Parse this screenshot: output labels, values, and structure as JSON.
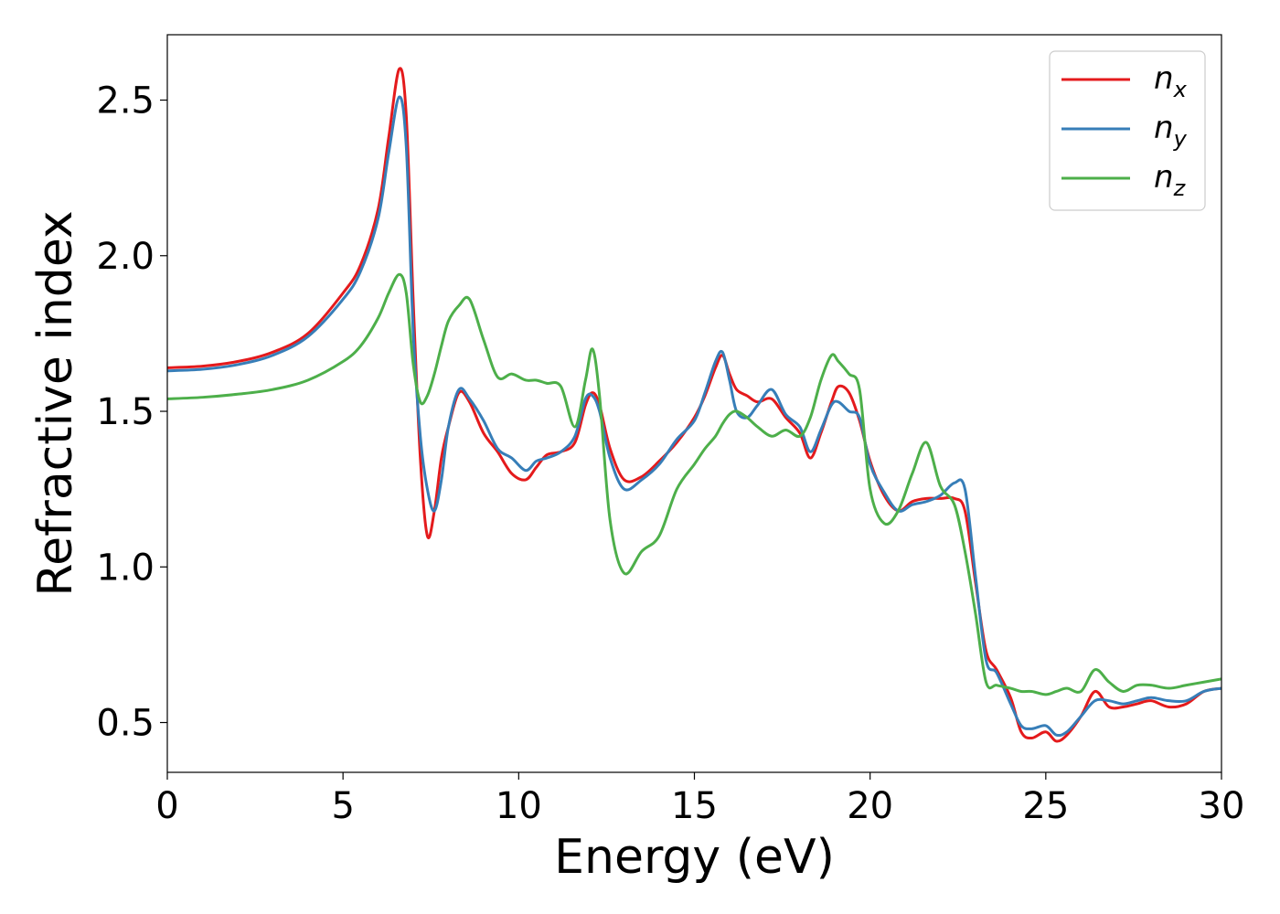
{
  "chart_data": {
    "type": "line",
    "title": "",
    "xlabel": "Energy (eV)",
    "ylabel": "Refractive index",
    "xlim": [
      0,
      30
    ],
    "ylim": [
      0.34,
      2.71
    ],
    "xticks": [
      0,
      5,
      10,
      15,
      20,
      25,
      30
    ],
    "xtick_labels": [
      "0",
      "5",
      "10",
      "15",
      "20",
      "25",
      "30"
    ],
    "yticks": [
      0.5,
      1.0,
      1.5,
      2.0,
      2.5
    ],
    "ytick_labels": [
      "0.5",
      "1.0",
      "1.5",
      "2.0",
      "2.5"
    ],
    "grid": false,
    "legend_position": "top-right",
    "series": [
      {
        "name": "n_x",
        "label_base": "n",
        "label_sub": "x",
        "color": "#e41a1c",
        "x": [
          0,
          1,
          2,
          3,
          4,
          5,
          5.5,
          6.0,
          6.3,
          6.6,
          6.8,
          7.0,
          7.2,
          7.4,
          7.6,
          7.8,
          8.0,
          8.3,
          8.6,
          9.0,
          9.4,
          9.8,
          10.2,
          10.5,
          10.8,
          11.2,
          11.6,
          11.9,
          12.1,
          12.3,
          12.6,
          13.0,
          13.5,
          14.0,
          14.5,
          15.0,
          15.3,
          15.6,
          15.8,
          16.0,
          16.2,
          16.5,
          16.8,
          17.2,
          17.6,
          18.0,
          18.3,
          18.6,
          18.9,
          19.1,
          19.4,
          19.7,
          20.0,
          20.4,
          20.8,
          21.2,
          21.6,
          22.0,
          22.4,
          22.7,
          23.0,
          23.3,
          23.6,
          24.0,
          24.3,
          24.6,
          25.0,
          25.3,
          25.6,
          26.0,
          26.4,
          26.8,
          27.2,
          27.6,
          28.0,
          28.5,
          29.0,
          29.5,
          30.0
        ],
        "values": [
          1.64,
          1.645,
          1.66,
          1.69,
          1.75,
          1.88,
          1.97,
          2.15,
          2.38,
          2.6,
          2.45,
          1.85,
          1.35,
          1.1,
          1.18,
          1.35,
          1.45,
          1.56,
          1.53,
          1.43,
          1.37,
          1.3,
          1.28,
          1.32,
          1.36,
          1.37,
          1.4,
          1.52,
          1.56,
          1.52,
          1.38,
          1.28,
          1.29,
          1.34,
          1.4,
          1.48,
          1.55,
          1.64,
          1.68,
          1.62,
          1.57,
          1.55,
          1.53,
          1.54,
          1.48,
          1.43,
          1.35,
          1.43,
          1.53,
          1.58,
          1.56,
          1.47,
          1.34,
          1.23,
          1.18,
          1.21,
          1.22,
          1.22,
          1.22,
          1.18,
          0.95,
          0.73,
          0.67,
          0.58,
          0.47,
          0.45,
          0.47,
          0.44,
          0.46,
          0.52,
          0.6,
          0.55,
          0.55,
          0.56,
          0.57,
          0.55,
          0.56,
          0.6,
          0.61
        ]
      },
      {
        "name": "n_y",
        "label_base": "n",
        "label_sub": "y",
        "color": "#377eb8",
        "x": [
          0,
          1,
          2,
          3,
          4,
          5,
          5.5,
          6.0,
          6.3,
          6.6,
          6.8,
          7.0,
          7.2,
          7.4,
          7.6,
          7.8,
          8.0,
          8.3,
          8.6,
          9.0,
          9.4,
          9.8,
          10.2,
          10.5,
          10.8,
          11.2,
          11.6,
          11.9,
          12.1,
          12.3,
          12.6,
          13.0,
          13.5,
          14.0,
          14.5,
          15.0,
          15.3,
          15.6,
          15.8,
          16.0,
          16.2,
          16.5,
          16.8,
          17.2,
          17.6,
          18.0,
          18.3,
          18.6,
          18.9,
          19.1,
          19.4,
          19.7,
          20.0,
          20.4,
          20.8,
          21.2,
          21.6,
          22.0,
          22.4,
          22.7,
          23.0,
          23.3,
          23.6,
          24.0,
          24.3,
          24.6,
          25.0,
          25.3,
          25.6,
          26.0,
          26.4,
          26.8,
          27.2,
          27.6,
          28.0,
          28.5,
          29.0,
          29.5,
          30.0
        ],
        "values": [
          1.63,
          1.635,
          1.65,
          1.68,
          1.74,
          1.86,
          1.95,
          2.12,
          2.33,
          2.51,
          2.35,
          1.75,
          1.42,
          1.25,
          1.18,
          1.28,
          1.45,
          1.57,
          1.54,
          1.47,
          1.38,
          1.35,
          1.31,
          1.34,
          1.35,
          1.37,
          1.42,
          1.54,
          1.55,
          1.5,
          1.35,
          1.25,
          1.28,
          1.33,
          1.41,
          1.47,
          1.56,
          1.66,
          1.69,
          1.6,
          1.5,
          1.48,
          1.52,
          1.57,
          1.49,
          1.45,
          1.37,
          1.44,
          1.52,
          1.53,
          1.5,
          1.48,
          1.33,
          1.24,
          1.18,
          1.2,
          1.21,
          1.23,
          1.27,
          1.25,
          0.97,
          0.7,
          0.66,
          0.56,
          0.49,
          0.48,
          0.49,
          0.46,
          0.47,
          0.52,
          0.57,
          0.57,
          0.56,
          0.57,
          0.58,
          0.57,
          0.57,
          0.6,
          0.61
        ]
      },
      {
        "name": "n_z",
        "label_base": "n",
        "label_sub": "z",
        "color": "#4daf4a",
        "x": [
          0,
          1,
          2,
          3,
          4,
          5,
          5.5,
          6.0,
          6.3,
          6.6,
          6.8,
          7.0,
          7.2,
          7.4,
          7.6,
          7.8,
          8.0,
          8.3,
          8.6,
          9.0,
          9.4,
          9.8,
          10.2,
          10.5,
          10.8,
          11.2,
          11.6,
          11.9,
          12.1,
          12.3,
          12.6,
          13.0,
          13.5,
          14.0,
          14.5,
          15.0,
          15.3,
          15.6,
          15.8,
          16.0,
          16.2,
          16.5,
          16.8,
          17.2,
          17.6,
          18.0,
          18.3,
          18.6,
          18.9,
          19.1,
          19.4,
          19.7,
          20.0,
          20.4,
          20.8,
          21.2,
          21.6,
          22.0,
          22.4,
          22.7,
          23.0,
          23.3,
          23.6,
          24.0,
          24.3,
          24.6,
          25.0,
          25.3,
          25.6,
          26.0,
          26.4,
          26.8,
          27.2,
          27.6,
          28.0,
          28.5,
          29.0,
          29.5,
          30.0
        ],
        "values": [
          1.54,
          1.545,
          1.555,
          1.57,
          1.6,
          1.66,
          1.71,
          1.8,
          1.88,
          1.94,
          1.88,
          1.65,
          1.53,
          1.55,
          1.62,
          1.71,
          1.79,
          1.84,
          1.86,
          1.73,
          1.61,
          1.62,
          1.6,
          1.6,
          1.59,
          1.58,
          1.45,
          1.6,
          1.7,
          1.55,
          1.15,
          0.98,
          1.05,
          1.1,
          1.25,
          1.33,
          1.38,
          1.42,
          1.46,
          1.49,
          1.5,
          1.48,
          1.45,
          1.42,
          1.44,
          1.42,
          1.48,
          1.6,
          1.68,
          1.66,
          1.62,
          1.57,
          1.25,
          1.14,
          1.18,
          1.3,
          1.4,
          1.26,
          1.2,
          1.05,
          0.85,
          0.63,
          0.62,
          0.61,
          0.6,
          0.6,
          0.59,
          0.6,
          0.61,
          0.6,
          0.67,
          0.63,
          0.6,
          0.62,
          0.62,
          0.61,
          0.62,
          0.63,
          0.64
        ]
      }
    ]
  }
}
